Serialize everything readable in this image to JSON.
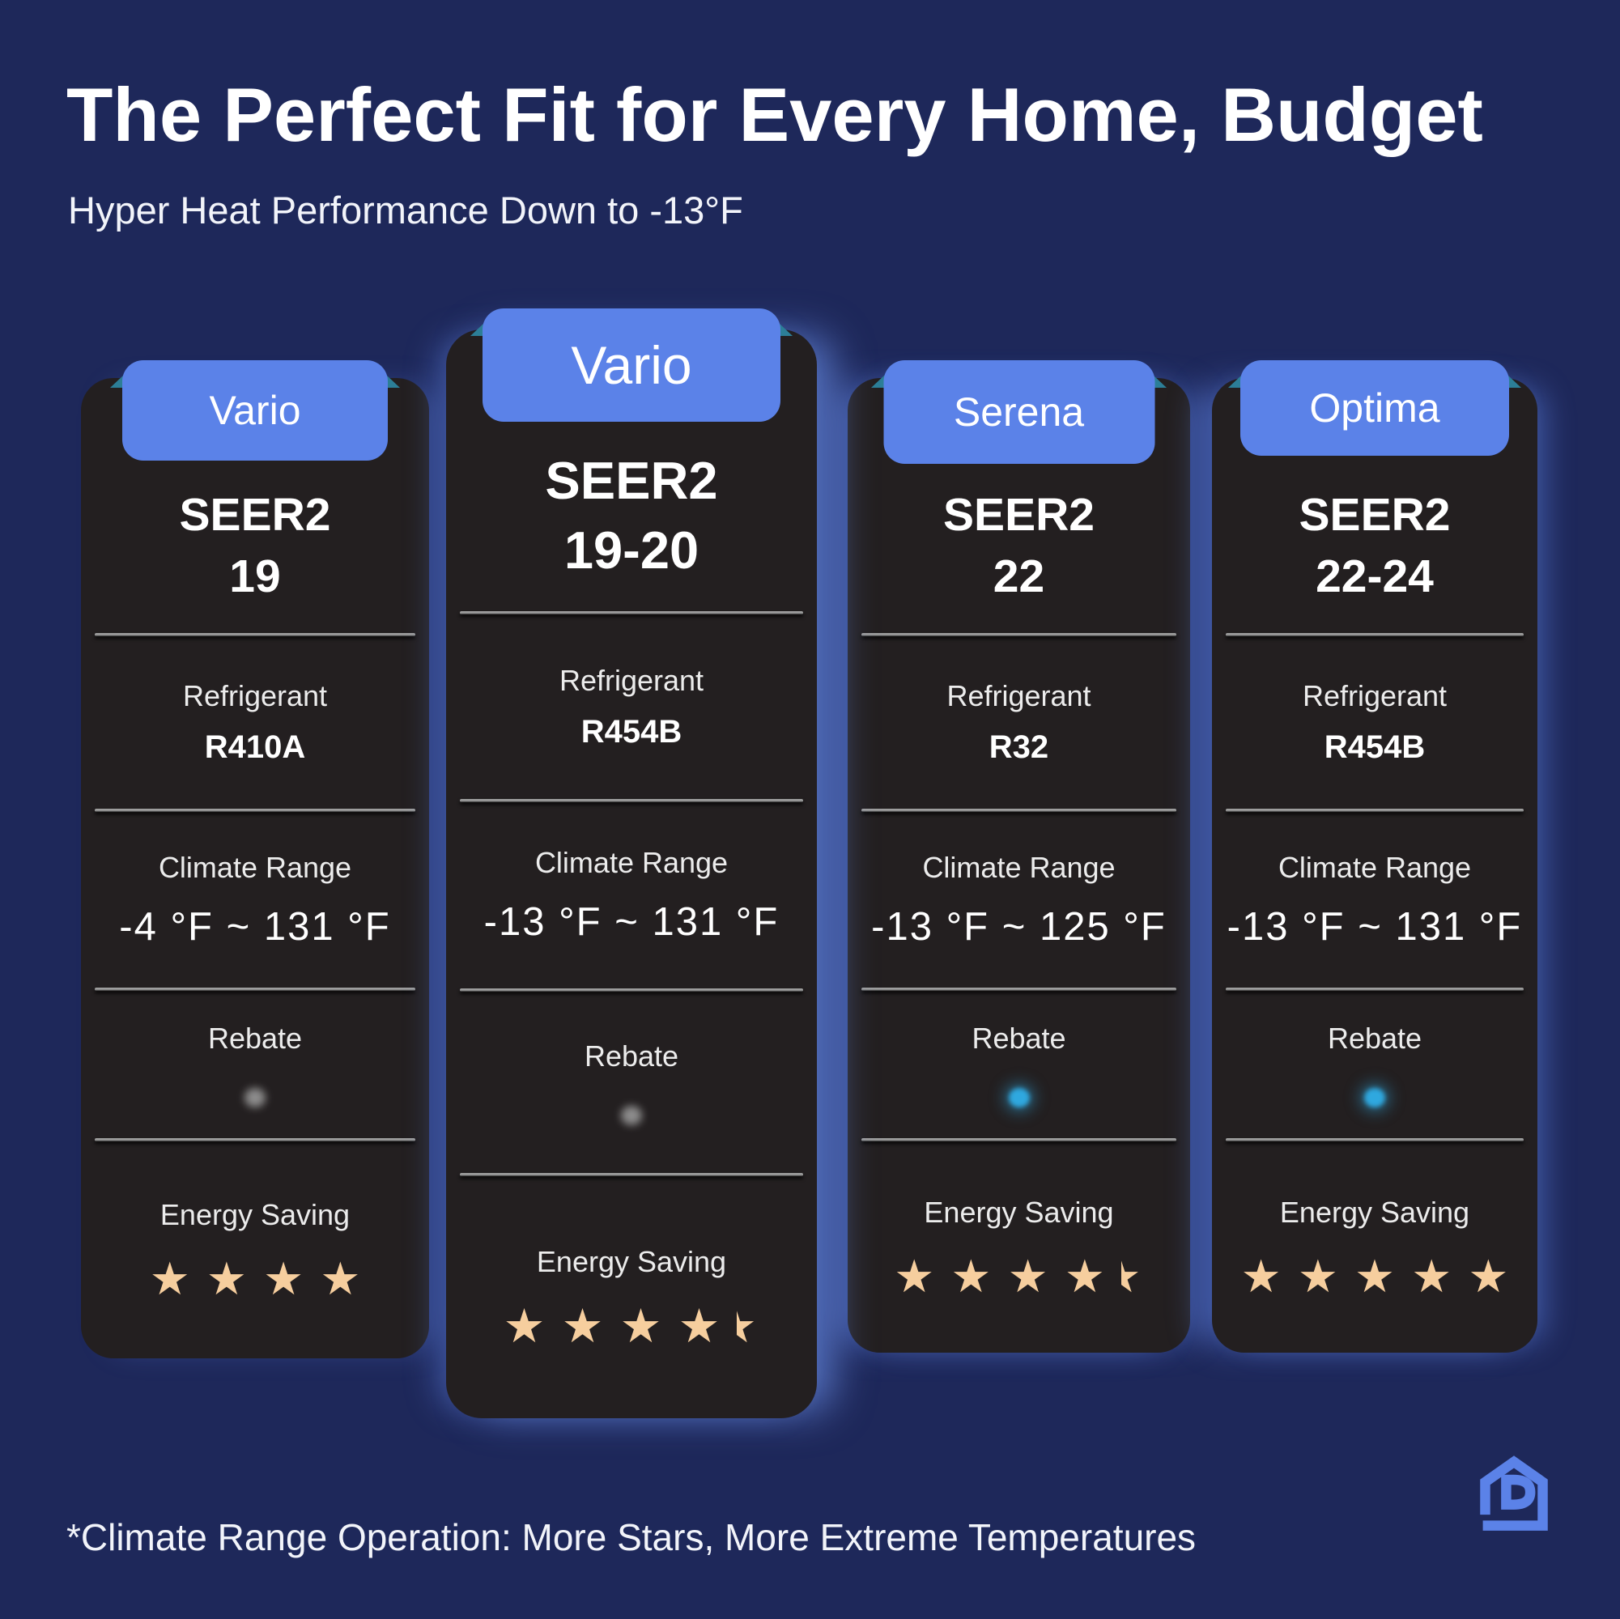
{
  "page": {
    "title": "The Perfect Fit for Every Home, Budget",
    "subtitle": "Hyper Heat Performance Down to -13°F",
    "footnote": "*Climate Range Operation: More Stars, More Extreme Temperatures"
  },
  "labels": {
    "refrigerant": "Refrigerant",
    "climate_range": "Climate Range",
    "rebate": "Rebate",
    "energy_saving": "Energy Saving"
  },
  "colors": {
    "background": "#1E285A",
    "card": "#231F20",
    "badge": "#5B82E8",
    "badge_fold": "#2C7E97",
    "star": "#F6CE9E",
    "rebate_blue": "#2FA8DF",
    "rebate_gray": "#A8A8A8"
  },
  "cards": [
    {
      "name": "Vario",
      "seer_label": "SEER2",
      "seer_value": "19",
      "refrigerant": "R410A",
      "climate_range": "-4 °F ~ 131 °F",
      "rebate_dot": "gray",
      "energy_stars": 4
    },
    {
      "name": "Vario",
      "seer_label": "SEER2",
      "seer_value": "19-20",
      "refrigerant": "R454B",
      "climate_range": "-13 °F ~ 131 °F",
      "rebate_dot": "gray",
      "energy_stars": 4.5
    },
    {
      "name": "Serena",
      "seer_label": "SEER2",
      "seer_value": "22",
      "refrigerant": "R32",
      "climate_range": "-13 °F ~ 125 °F",
      "rebate_dot": "blue",
      "energy_stars": 4.5
    },
    {
      "name": "Optima",
      "seer_label": "SEER2",
      "seer_value": "22-24",
      "refrigerant": "R454B",
      "climate_range": "-13 °F ~ 131 °F",
      "rebate_dot": "blue",
      "energy_stars": 5
    }
  ]
}
